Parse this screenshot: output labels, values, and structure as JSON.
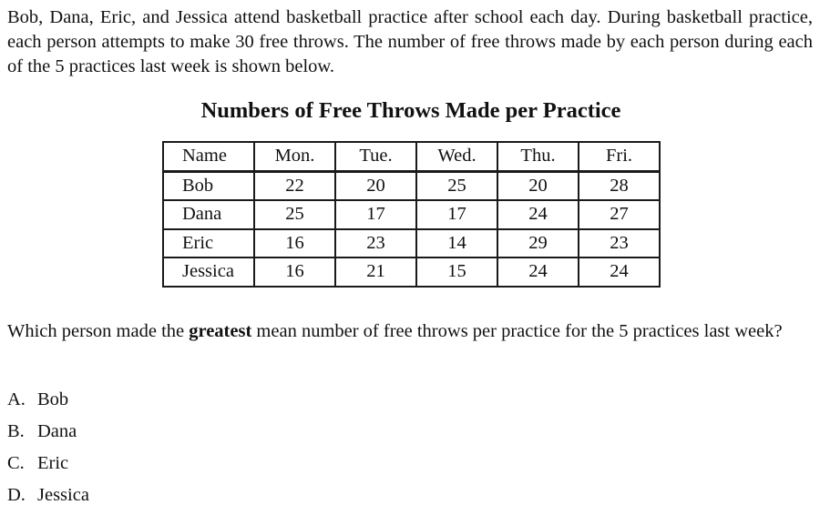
{
  "intro": "Bob, Dana, Eric, and Jessica attend basketball practice after school each day. During basketball practice, each person attempts to make 30 free throws. The number of free throws made by each person during each of the 5 practices last week is shown below.",
  "table": {
    "title": "Numbers of Free Throws Made per Practice",
    "headers": [
      "Name",
      "Mon.",
      "Tue.",
      "Wed.",
      "Thu.",
      "Fri."
    ],
    "rows": [
      [
        "Bob",
        "22",
        "20",
        "25",
        "20",
        "28"
      ],
      [
        "Dana",
        "25",
        "17",
        "17",
        "24",
        "27"
      ],
      [
        "Eric",
        "16",
        "23",
        "14",
        "29",
        "23"
      ],
      [
        "Jessica",
        "16",
        "21",
        "15",
        "24",
        "24"
      ]
    ]
  },
  "question": {
    "before": "Which person made the ",
    "emphasis": "greatest",
    "after": " mean number of free throws per practice for the 5 practices last week?"
  },
  "options": [
    {
      "letter": "A.",
      "text": "Bob"
    },
    {
      "letter": "B.",
      "text": "Dana"
    },
    {
      "letter": "C.",
      "text": "Eric"
    },
    {
      "letter": "D.",
      "text": "Jessica"
    }
  ]
}
